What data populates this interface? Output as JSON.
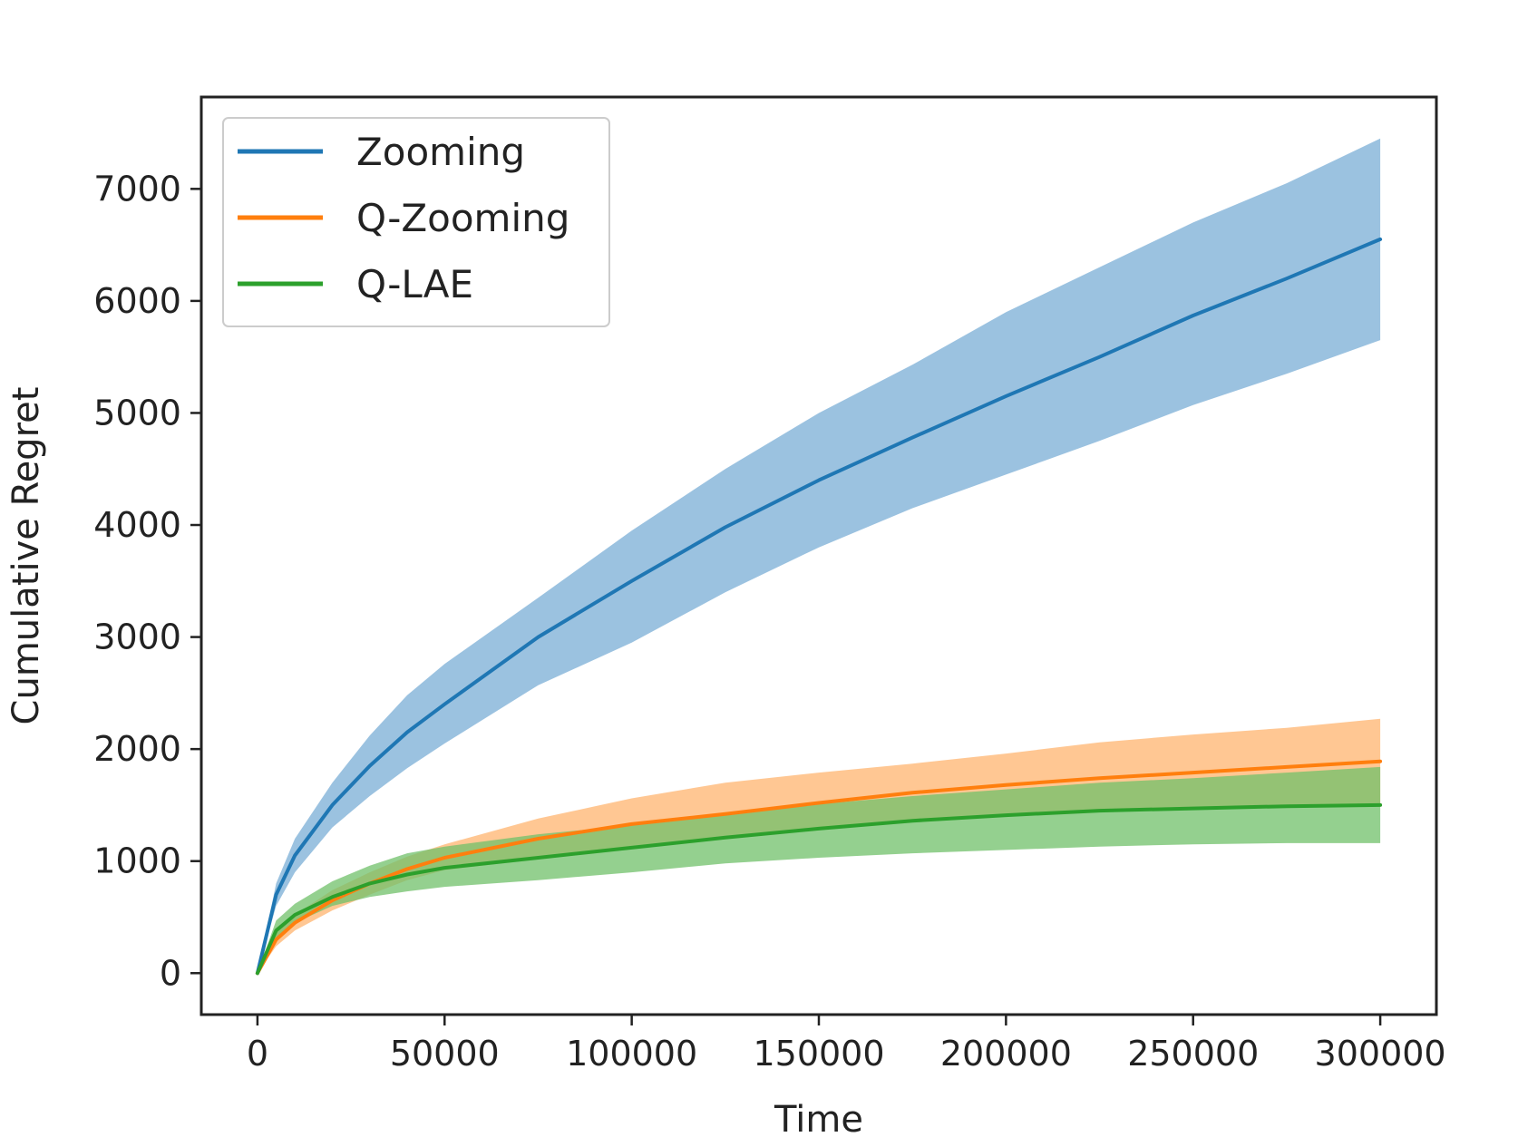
{
  "chart_data": {
    "type": "line",
    "title": "",
    "xlabel": "Time",
    "ylabel": "Cumulative Regret",
    "xlim": [
      -15000,
      315000
    ],
    "ylim": [
      -370,
      7820
    ],
    "xticks": [
      0,
      50000,
      100000,
      150000,
      200000,
      250000,
      300000
    ],
    "xtick_labels": [
      "0",
      "50000",
      "100000",
      "150000",
      "200000",
      "250000",
      "300000"
    ],
    "yticks": [
      0,
      1000,
      2000,
      3000,
      4000,
      5000,
      6000,
      7000
    ],
    "ytick_labels": [
      "0",
      "1000",
      "2000",
      "3000",
      "4000",
      "5000",
      "6000",
      "7000"
    ],
    "grid": false,
    "legend_position": "top-left",
    "x": [
      0,
      5000,
      10000,
      20000,
      30000,
      40000,
      50000,
      75000,
      100000,
      125000,
      150000,
      175000,
      200000,
      225000,
      250000,
      275000,
      300000
    ],
    "series": [
      {
        "name": "Zooming",
        "color": "#1f77b4",
        "band_color": "#7aaed6",
        "mean": [
          0,
          700,
          1050,
          1500,
          1850,
          2150,
          2400,
          3000,
          3500,
          3980,
          4400,
          4780,
          5150,
          5500,
          5870,
          6200,
          6550
        ],
        "lower": [
          0,
          600,
          900,
          1300,
          1580,
          1830,
          2050,
          2570,
          2950,
          3400,
          3800,
          4150,
          4450,
          4750,
          5070,
          5350,
          5650
        ],
        "upper": [
          0,
          800,
          1200,
          1700,
          2120,
          2480,
          2760,
          3350,
          3950,
          4500,
          5000,
          5430,
          5900,
          6300,
          6700,
          7050,
          7450
        ]
      },
      {
        "name": "Q-Zooming",
        "color": "#ff7f0e",
        "band_color": "#ffb46f",
        "mean": [
          0,
          300,
          450,
          650,
          800,
          930,
          1030,
          1200,
          1330,
          1420,
          1520,
          1610,
          1680,
          1740,
          1790,
          1840,
          1890
        ],
        "lower": [
          0,
          240,
          380,
          560,
          700,
          830,
          920,
          1020,
          1120,
          1210,
          1290,
          1360,
          1400,
          1440,
          1460,
          1490,
          1500
        ],
        "upper": [
          0,
          360,
          520,
          740,
          900,
          1040,
          1150,
          1380,
          1560,
          1700,
          1790,
          1870,
          1960,
          2060,
          2130,
          2190,
          2270
        ]
      },
      {
        "name": "Q-LAE",
        "color": "#2ca02c",
        "band_color": "#70c06a",
        "mean": [
          0,
          380,
          520,
          680,
          800,
          880,
          940,
          1030,
          1120,
          1210,
          1290,
          1360,
          1410,
          1450,
          1470,
          1490,
          1500
        ],
        "lower": [
          0,
          300,
          450,
          600,
          680,
          730,
          770,
          830,
          900,
          980,
          1030,
          1070,
          1100,
          1130,
          1150,
          1160,
          1160
        ],
        "upper": [
          0,
          470,
          620,
          820,
          960,
          1070,
          1130,
          1240,
          1320,
          1410,
          1510,
          1580,
          1640,
          1700,
          1740,
          1790,
          1840
        ]
      }
    ]
  }
}
